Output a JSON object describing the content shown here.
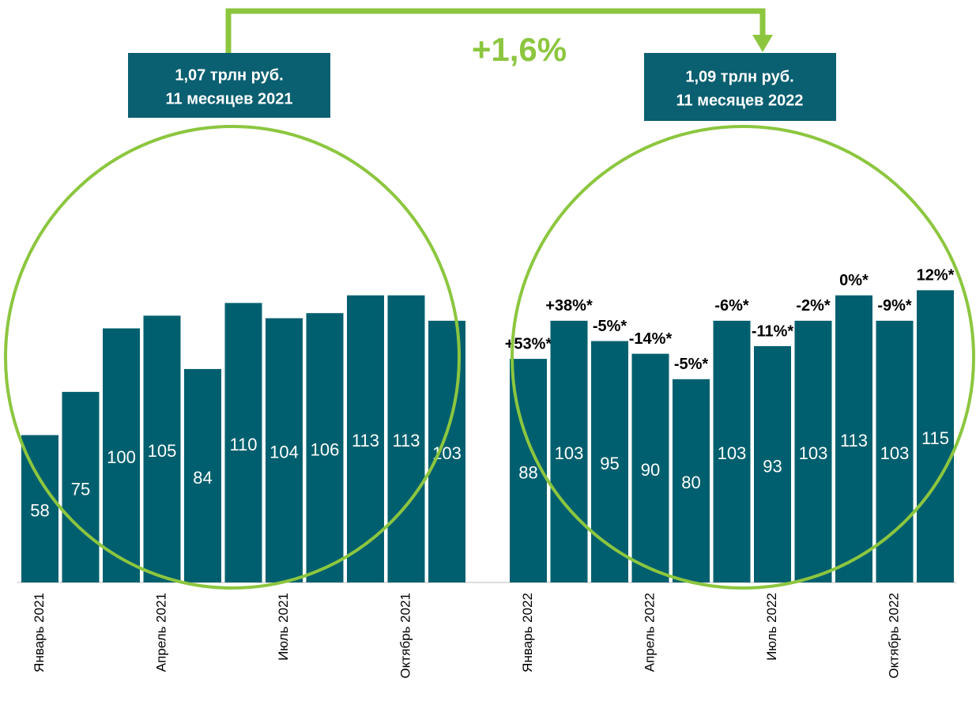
{
  "chart_data": {
    "type": "bar",
    "categories": [
      "Январь 2021",
      null,
      null,
      "Апрель 2021",
      null,
      null,
      "Июль 2021",
      null,
      null,
      "Октябрь 2021",
      null,
      null,
      "Январь 2022",
      null,
      null,
      "Апрель 2022",
      null,
      null,
      "Июль 2022",
      null,
      null,
      "Октябрь 2022",
      null
    ],
    "values": [
      58,
      75,
      100,
      105,
      84,
      110,
      104,
      106,
      113,
      113,
      103,
      null,
      88,
      103,
      95,
      90,
      80,
      103,
      93,
      103,
      113,
      103,
      115
    ],
    "growth_labels": [
      null,
      null,
      null,
      null,
      null,
      null,
      null,
      null,
      null,
      null,
      null,
      null,
      "+53%*",
      "+38%*",
      "-5%*",
      "-14%*",
      "-5%*",
      "-6%*",
      "-11%*",
      "-2%*",
      "0%*",
      "-9%*",
      "12%*"
    ],
    "color": "#005f6e",
    "boxes": [
      {
        "lines": [
          "1,07 трлн руб.",
          "11 месяцев 2021"
        ]
      },
      {
        "lines": [
          "1,09 трлн руб.",
          "11 месяцев 2022"
        ]
      }
    ],
    "change_label": "+1,6%"
  }
}
